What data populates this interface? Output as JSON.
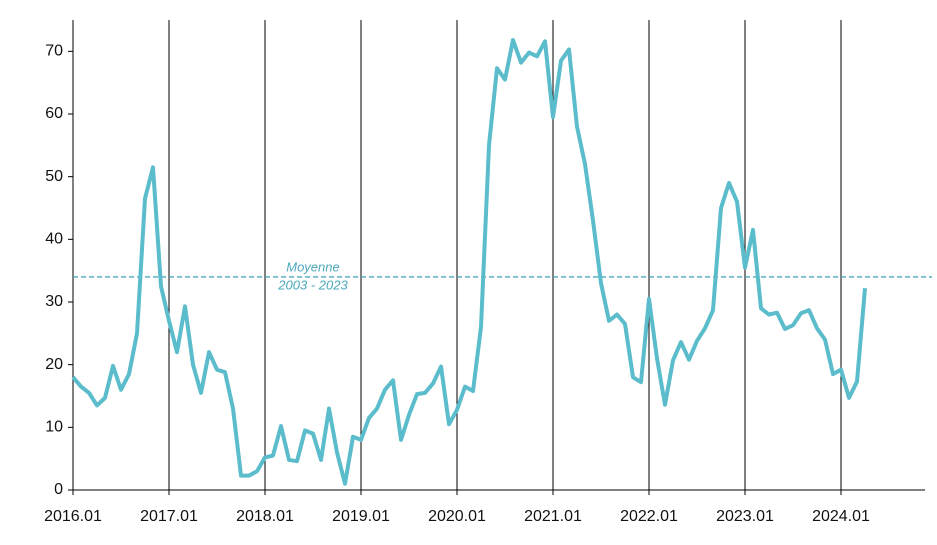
{
  "chart_data": {
    "type": "line",
    "categories": [
      "2016.01",
      null,
      null,
      null,
      null,
      null,
      null,
      null,
      null,
      null,
      null,
      null,
      "2017.01",
      null,
      null,
      null,
      null,
      null,
      null,
      null,
      null,
      null,
      null,
      null,
      "2018.01",
      null,
      null,
      null,
      null,
      null,
      null,
      null,
      null,
      null,
      null,
      null,
      "2019.01",
      null,
      null,
      null,
      null,
      null,
      null,
      null,
      null,
      null,
      null,
      null,
      "2020.01",
      null,
      null,
      null,
      null,
      null,
      null,
      null,
      null,
      null,
      null,
      null,
      "2021.01",
      null,
      null,
      null,
      null,
      null,
      null,
      null,
      null,
      null,
      null,
      null,
      "2022.01",
      null,
      null,
      null,
      null,
      null,
      null,
      null,
      null,
      null,
      null,
      null,
      "2023.01",
      null,
      null,
      null,
      null,
      null,
      null,
      null,
      null,
      null,
      null,
      null,
      "2024.01",
      null,
      null,
      null
    ],
    "series": [
      {
        "color": "#5bbccc",
        "values": [
          18,
          16.5,
          15.5,
          13.5,
          14.7,
          19.8,
          16,
          18.5,
          25,
          46.5,
          51.5,
          32.5,
          27,
          22,
          29.3,
          20,
          15.5,
          22,
          19.2,
          18.8,
          13,
          2.3,
          2.3,
          3,
          5.2,
          5.5,
          10.2,
          4.8,
          4.6,
          9.5,
          9,
          4.8,
          13,
          6,
          1,
          8.5,
          8,
          11.5,
          13,
          16,
          17.5,
          8,
          12,
          15.3,
          15.5,
          17,
          19.7,
          10.5,
          12.8,
          16.5,
          15.8,
          26,
          55,
          67.3,
          65.5,
          71.8,
          68.2,
          69.8,
          69.2,
          71.6,
          59.5,
          68.5,
          70.3,
          58,
          52,
          43,
          33,
          27,
          28,
          26.5,
          18,
          17.2,
          30.5,
          21,
          13.6,
          20.7,
          23.6,
          20.8,
          23.8,
          25.8,
          28.7,
          45,
          49,
          46,
          35.5,
          41.5,
          29,
          28,
          28.3,
          25.7,
          26.3,
          28.2,
          28.7,
          25.8,
          24,
          18.5,
          19.2,
          14.7,
          17.3,
          32.2
        ]
      }
    ],
    "ylim": [
      0,
      75
    ],
    "yticks": [
      0,
      10,
      20,
      30,
      40,
      50,
      60,
      70
    ],
    "reference_line": {
      "value": 34,
      "color": "#4aa8bc",
      "label_lines": [
        "Moyenne",
        "2003 - 2023"
      ]
    },
    "grid": true
  }
}
